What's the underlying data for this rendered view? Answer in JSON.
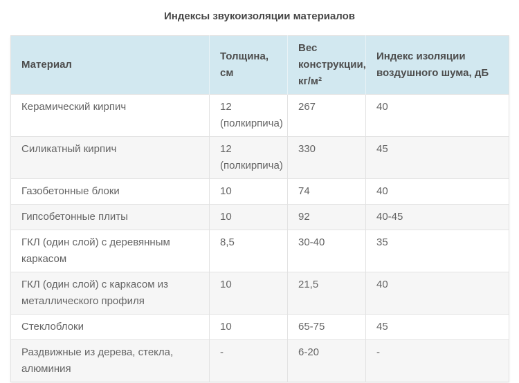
{
  "chart_data": {
    "type": "table",
    "title": "Индексы звукоизоляции материалов",
    "columns": [
      "Материал",
      "Толщина, см",
      "Вес конструкции, кг/м²",
      "Индекс изоляции воздушного шума, дБ"
    ],
    "rows": [
      [
        "Керамический кирпич",
        "12 (полкирпича)",
        "267",
        "40"
      ],
      [
        "Силикатный кирпич",
        "12 (полкирпича)",
        "330",
        "45"
      ],
      [
        "Газобетонные блоки",
        "10",
        "74",
        "40"
      ],
      [
        "Гипсобетонные плиты",
        "10",
        "92",
        "40-45"
      ],
      [
        "ГКЛ (один слой) с деревянным каркасом",
        "8,5",
        "30-40",
        "35"
      ],
      [
        "ГКЛ (один слой) с каркасом из металлического профиля",
        "10",
        "21,5",
        "40"
      ],
      [
        "Стеклоблоки",
        "10",
        "65-75",
        "45"
      ],
      [
        "Раздвижные из дерева, стекла, алюминия",
        "-",
        "6-20",
        "-"
      ]
    ]
  },
  "colors": {
    "header_bg": "#d2e8f0",
    "header_divider": "#e9f2f6",
    "header_text": "#4d4d4d",
    "row_alt_bg": "#f6f6f6",
    "border": "#e2e2e2",
    "body_text": "#646464",
    "title_text": "#474747"
  }
}
